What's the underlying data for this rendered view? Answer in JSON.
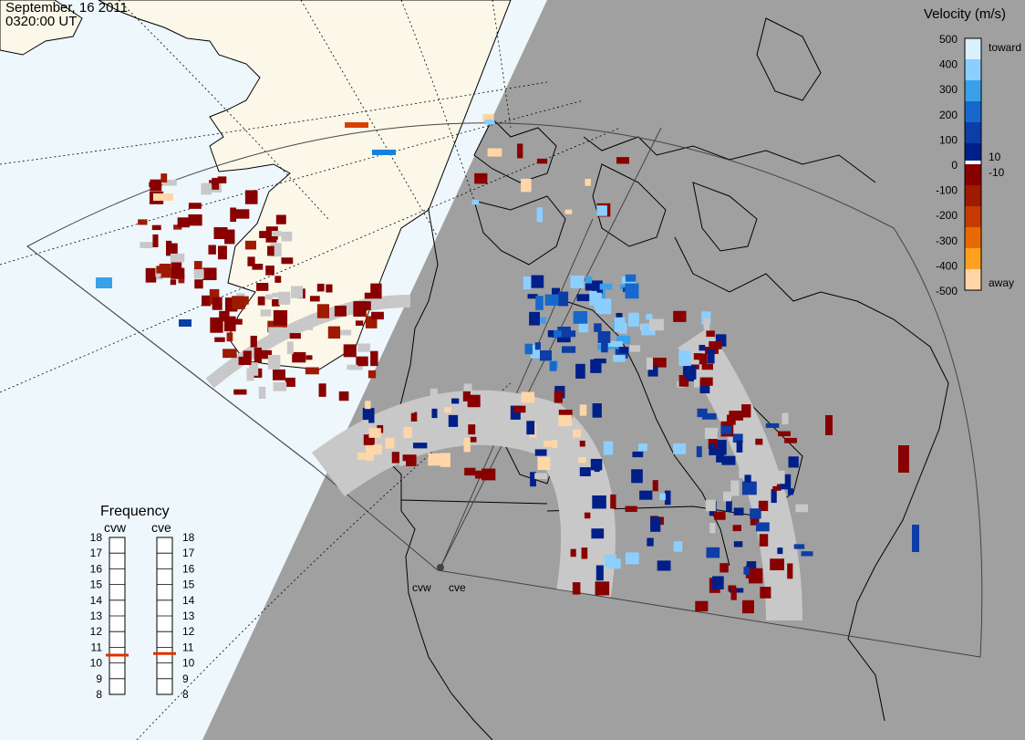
{
  "header": {
    "date": "September, 16 2011",
    "time": "0320:00 UT"
  },
  "legend": {
    "title": "Velocity (m/s)",
    "ticks": [
      "500",
      "400",
      "300",
      "200",
      "100",
      "0",
      "-100",
      "-200",
      "-300",
      "-400",
      "-500"
    ],
    "extra_ticks": [
      "10",
      "-10"
    ],
    "top_label": "toward",
    "bottom_label": "away",
    "colors": [
      "#d9f0ff",
      "#8ccfff",
      "#3aa0ea",
      "#1668cc",
      "#0d3da6",
      "#001f88",
      "#880000",
      "#9e1a00",
      "#c83b00",
      "#e86a00",
      "#ffa020",
      "#ffd6a8"
    ]
  },
  "frequency": {
    "title": "Frequency",
    "radars": [
      {
        "name": "cvw",
        "value_mhz": 10.5
      },
      {
        "name": "cve",
        "value_mhz": 10.6
      }
    ],
    "scale": [
      "18",
      "17",
      "16",
      "15",
      "14",
      "13",
      "12",
      "11",
      "10",
      "9",
      "8"
    ],
    "marker_color": "#e03000"
  },
  "stations": [
    {
      "name": "cvw"
    },
    {
      "name": "cve"
    }
  ],
  "map": {
    "night_shade_color": "#a0a0a0",
    "ocean_color": "#eef7fc",
    "land_color": "#fbf8e9",
    "ground_scatter_color": "#c8c8c8"
  }
}
